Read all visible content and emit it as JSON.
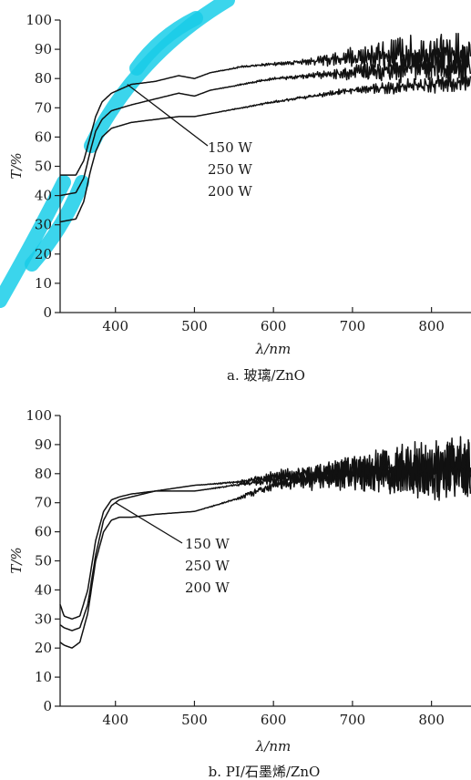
{
  "figure": {
    "watermark_color": "#00c8e6"
  },
  "chart_data": [
    {
      "type": "line",
      "caption": "a. 玻璃/ZnO",
      "xlabel": "λ/nm",
      "ylabel": "T/%",
      "xlim": [
        330,
        850
      ],
      "ylim": [
        0,
        100
      ],
      "x_ticks": [
        400,
        500,
        600,
        700,
        800
      ],
      "y_ticks": [
        0,
        10,
        20,
        30,
        40,
        50,
        60,
        70,
        80,
        90,
        100
      ],
      "legend_labels": [
        "150 W",
        "250 W",
        "200 W"
      ],
      "leader_target": [
        415,
        78
      ],
      "series": [
        {
          "name": "150 W",
          "x": [
            330,
            350,
            360,
            368,
            375,
            383,
            395,
            420,
            450,
            480,
            500,
            520,
            560,
            600,
            650,
            700,
            750,
            800,
            850
          ],
          "y": [
            47,
            47,
            52,
            60,
            67,
            72,
            75,
            78,
            79,
            81,
            80,
            82,
            84,
            85,
            86,
            87,
            88,
            88,
            89
          ],
          "noise": [
            0,
            0,
            0,
            0,
            0,
            0,
            0,
            0,
            0,
            0,
            0,
            0,
            0.3,
            0.5,
            1,
            3,
            5,
            6,
            7
          ]
        },
        {
          "name": "250 W",
          "x": [
            330,
            350,
            360,
            368,
            375,
            383,
            395,
            420,
            450,
            480,
            500,
            520,
            560,
            600,
            650,
            700,
            750,
            800,
            850
          ],
          "y": [
            40,
            41,
            46,
            55,
            62,
            66,
            69,
            71,
            73,
            75,
            74,
            76,
            78,
            80,
            81,
            82,
            83,
            84,
            84
          ],
          "noise": [
            0,
            0,
            0,
            0,
            0,
            0,
            0,
            0,
            0,
            0,
            0,
            0,
            0.2,
            0.4,
            0.8,
            2,
            4,
            5,
            6
          ]
        },
        {
          "name": "200 W",
          "x": [
            330,
            350,
            360,
            368,
            375,
            383,
            395,
            420,
            450,
            480,
            500,
            520,
            560,
            600,
            650,
            700,
            750,
            800,
            850
          ],
          "y": [
            31,
            32,
            38,
            48,
            55,
            60,
            63,
            65,
            66,
            67,
            67,
            68,
            70,
            72,
            74,
            76,
            77,
            78,
            79
          ],
          "noise": [
            0,
            0,
            0,
            0,
            0,
            0,
            0,
            0,
            0,
            0,
            0,
            0,
            0.2,
            0.3,
            0.5,
            1,
            2,
            2.5,
            3
          ]
        }
      ]
    },
    {
      "type": "line",
      "caption": "b. PI/石墨烯/ZnO",
      "xlabel": "λ/nm",
      "ylabel": "T/%",
      "xlim": [
        330,
        850
      ],
      "ylim": [
        0,
        100
      ],
      "x_ticks": [
        400,
        500,
        600,
        700,
        800
      ],
      "y_ticks": [
        0,
        10,
        20,
        30,
        40,
        50,
        60,
        70,
        80,
        90,
        100
      ],
      "legend_labels": [
        "150 W",
        "250 W",
        "200 W"
      ],
      "leader_target": [
        400,
        70
      ],
      "series": [
        {
          "name": "150 W",
          "x": [
            330,
            335,
            345,
            355,
            365,
            375,
            385,
            395,
            405,
            420,
            450,
            500,
            550,
            600,
            650,
            700,
            750,
            800,
            850
          ],
          "y": [
            28,
            27,
            26,
            27,
            35,
            52,
            64,
            69,
            71,
            72,
            74,
            76,
            77,
            79,
            80,
            81,
            81,
            82,
            82
          ],
          "noise": [
            0,
            0,
            0,
            0,
            0,
            0,
            0,
            0,
            0,
            0,
            0,
            0,
            0.3,
            1.5,
            3,
            5,
            7,
            8,
            9
          ]
        },
        {
          "name": "250 W",
          "x": [
            330,
            335,
            345,
            355,
            365,
            375,
            385,
            395,
            405,
            420,
            450,
            500,
            550,
            600,
            650,
            700,
            750,
            800,
            850
          ],
          "y": [
            35,
            31,
            30,
            31,
            40,
            57,
            67,
            71,
            72,
            73,
            74,
            74,
            76,
            78,
            79,
            80,
            81,
            81,
            82
          ],
          "noise": [
            0,
            0,
            0,
            0,
            0,
            0,
            0,
            0,
            0,
            0,
            0,
            0,
            0.3,
            1.5,
            3,
            5,
            7,
            8,
            9
          ]
        },
        {
          "name": "200 W",
          "x": [
            330,
            335,
            345,
            355,
            365,
            375,
            385,
            395,
            405,
            420,
            450,
            500,
            550,
            600,
            650,
            700,
            750,
            800,
            850
          ],
          "y": [
            22,
            21,
            20,
            22,
            32,
            50,
            60,
            64,
            65,
            65,
            66,
            67,
            71,
            76,
            78,
            80,
            81,
            81,
            81
          ],
          "noise": [
            0,
            0,
            0,
            0,
            0,
            0,
            0,
            0,
            0,
            0,
            0,
            0,
            0.3,
            1.5,
            3,
            5,
            7,
            8,
            9
          ]
        }
      ]
    }
  ]
}
